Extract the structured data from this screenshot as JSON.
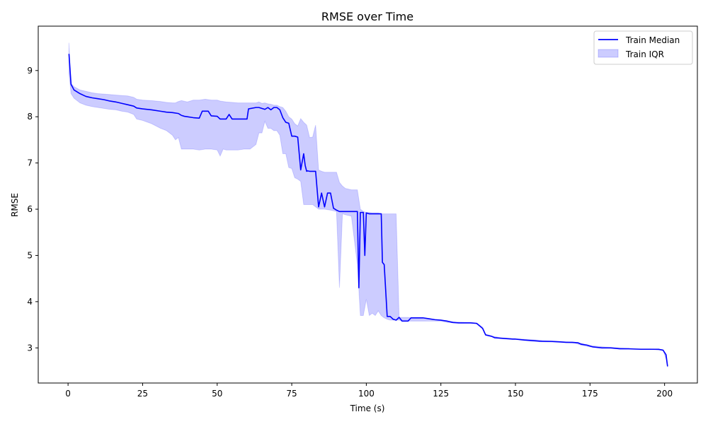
{
  "chart_data": {
    "type": "line",
    "title": "RMSE over Time",
    "xlabel": "Time (s)",
    "ylabel": "RMSE",
    "xlim": [
      -10,
      211
    ],
    "ylim": [
      2.24,
      9.96
    ],
    "xticks": [
      0,
      25,
      50,
      75,
      100,
      125,
      150,
      175,
      200
    ],
    "yticks": [
      3,
      4,
      5,
      6,
      7,
      8,
      9
    ],
    "grid": false,
    "legend_position": "top-right",
    "colors": {
      "median": "#0000ff",
      "iqr_fill": "#0000ff"
    },
    "series": [
      {
        "name": "Train Median",
        "kind": "line",
        "x": [
          0.3,
          1,
          2,
          4,
          6,
          8,
          10,
          12,
          14,
          16,
          18,
          20,
          22,
          23,
          25,
          28,
          31,
          33,
          35,
          37,
          38,
          39,
          40,
          42,
          44,
          45,
          47,
          48,
          50,
          51,
          53,
          54,
          55,
          56,
          58,
          60,
          60.5,
          63,
          64,
          66,
          67,
          68,
          69,
          70,
          71,
          72,
          73,
          74,
          75,
          76,
          77,
          78,
          79,
          79.5,
          80,
          80.3,
          81,
          83,
          84,
          85,
          86,
          87,
          88,
          89,
          90,
          91,
          93,
          95,
          97,
          97.5,
          98,
          99,
          99.5,
          100,
          101,
          103,
          105,
          105.4,
          106,
          107,
          108,
          109,
          110,
          111,
          112,
          114,
          115,
          117,
          119,
          121,
          123,
          125,
          127,
          129,
          131,
          133,
          135,
          137,
          139,
          140,
          142,
          143,
          145,
          147,
          149,
          150,
          153,
          155,
          157,
          159,
          162,
          165,
          167,
          169,
          171,
          172,
          174,
          176,
          179,
          182,
          185,
          188,
          192,
          195,
          198,
          199.5,
          200.5,
          201
        ],
        "y": [
          9.36,
          8.7,
          8.58,
          8.5,
          8.44,
          8.41,
          8.39,
          8.37,
          8.34,
          8.32,
          8.29,
          8.26,
          8.23,
          8.19,
          8.17,
          8.15,
          8.12,
          8.1,
          8.09,
          8.07,
          8.03,
          8.01,
          8.0,
          7.98,
          7.97,
          8.12,
          8.12,
          8.02,
          8.01,
          7.95,
          7.95,
          8.05,
          7.95,
          7.95,
          7.95,
          7.95,
          8.17,
          8.2,
          8.2,
          8.16,
          8.2,
          8.15,
          8.2,
          8.2,
          8.15,
          7.98,
          7.88,
          7.86,
          7.58,
          7.58,
          7.56,
          6.85,
          7.2,
          6.95,
          6.82,
          6.83,
          6.82,
          6.82,
          6.05,
          6.35,
          6.05,
          6.35,
          6.35,
          6.02,
          5.98,
          5.95,
          5.95,
          5.95,
          5.95,
          4.3,
          5.93,
          5.93,
          5.0,
          5.92,
          5.9,
          5.9,
          5.9,
          4.85,
          4.8,
          3.68,
          3.68,
          3.62,
          3.6,
          3.66,
          3.58,
          3.58,
          3.65,
          3.65,
          3.65,
          3.63,
          3.61,
          3.6,
          3.58,
          3.55,
          3.54,
          3.54,
          3.54,
          3.53,
          3.42,
          3.28,
          3.25,
          3.22,
          3.21,
          3.2,
          3.19,
          3.19,
          3.17,
          3.16,
          3.15,
          3.14,
          3.14,
          3.13,
          3.12,
          3.12,
          3.11,
          3.08,
          3.06,
          3.02,
          3.0,
          3.0,
          2.98,
          2.98,
          2.97,
          2.97,
          2.97,
          2.95,
          2.85,
          2.6
        ]
      },
      {
        "name": "Train IQR",
        "kind": "band",
        "x": [
          0.3,
          1,
          2,
          4,
          6,
          8,
          10,
          12,
          14,
          16,
          18,
          20,
          22,
          23,
          25,
          28,
          31,
          33,
          35,
          36,
          37,
          38,
          40,
          42,
          44,
          46,
          48,
          50,
          51,
          52,
          53,
          55,
          57,
          59,
          61,
          63,
          64,
          65,
          66,
          67,
          68,
          69,
          70,
          71,
          72,
          73,
          74,
          75,
          76,
          77,
          78,
          79,
          80,
          81,
          82,
          83,
          84,
          85,
          86,
          88,
          90,
          91,
          92,
          93,
          95,
          97,
          98,
          99,
          100,
          101,
          102,
          103,
          104,
          105,
          106,
          107,
          108,
          109,
          110,
          111,
          112,
          114,
          116,
          118,
          120,
          122,
          125,
          127,
          130,
          135,
          137,
          139,
          140,
          142,
          145,
          150,
          155,
          160,
          165,
          170,
          172,
          175,
          180,
          185,
          190,
          195,
          198,
          199.5,
          200.5,
          201
        ],
        "y_low": [
          8.95,
          8.5,
          8.4,
          8.3,
          8.25,
          8.22,
          8.2,
          8.18,
          8.16,
          8.15,
          8.12,
          8.1,
          8.05,
          7.95,
          7.92,
          7.85,
          7.75,
          7.7,
          7.6,
          7.5,
          7.55,
          7.3,
          7.3,
          7.3,
          7.28,
          7.3,
          7.3,
          7.28,
          7.15,
          7.3,
          7.28,
          7.28,
          7.28,
          7.3,
          7.3,
          7.4,
          7.65,
          7.65,
          7.9,
          7.75,
          7.75,
          7.7,
          7.7,
          7.6,
          7.2,
          7.2,
          6.9,
          6.88,
          6.68,
          6.65,
          6.6,
          6.1,
          6.1,
          6.1,
          6.1,
          6.05,
          6.0,
          6.0,
          6.0,
          5.98,
          5.95,
          4.3,
          5.9,
          5.88,
          5.85,
          4.8,
          3.7,
          3.7,
          4.05,
          3.7,
          3.75,
          3.7,
          3.8,
          3.7,
          3.65,
          3.62,
          3.6,
          3.6,
          3.6,
          3.6,
          3.58,
          3.58,
          3.58,
          3.58,
          3.58,
          3.58,
          3.58,
          3.55,
          3.54,
          3.54,
          3.52,
          3.42,
          3.28,
          3.25,
          3.2,
          3.18,
          3.15,
          3.13,
          3.12,
          3.1,
          3.06,
          3.02,
          3.0,
          2.98,
          2.97,
          2.97,
          2.95,
          2.95,
          2.75,
          2.58
        ],
        "y_high": [
          9.6,
          8.72,
          8.65,
          8.58,
          8.55,
          8.52,
          8.5,
          8.49,
          8.48,
          8.47,
          8.46,
          8.45,
          8.42,
          8.38,
          8.36,
          8.35,
          8.33,
          8.31,
          8.3,
          8.3,
          8.33,
          8.35,
          8.32,
          8.36,
          8.36,
          8.38,
          8.36,
          8.36,
          8.34,
          8.33,
          8.32,
          8.31,
          8.3,
          8.3,
          8.3,
          8.3,
          8.32,
          8.29,
          8.3,
          8.28,
          8.27,
          8.25,
          8.25,
          8.22,
          8.2,
          8.12,
          8.0,
          7.95,
          7.85,
          7.8,
          7.96,
          7.88,
          7.82,
          7.55,
          7.56,
          7.82,
          6.85,
          6.82,
          6.8,
          6.8,
          6.8,
          6.58,
          6.5,
          6.45,
          6.42,
          6.42,
          6.0,
          5.95,
          5.93,
          5.93,
          5.92,
          5.92,
          5.92,
          5.9,
          5.9,
          5.9,
          5.9,
          5.9,
          5.9,
          3.66,
          3.66,
          3.66,
          3.65,
          3.65,
          3.64,
          3.62,
          3.6,
          3.58,
          3.56,
          3.55,
          3.54,
          3.45,
          3.3,
          3.26,
          3.22,
          3.2,
          3.18,
          3.16,
          3.14,
          3.12,
          3.1,
          3.05,
          3.02,
          3.0,
          2.98,
          2.98,
          2.97,
          2.96,
          2.8,
          2.62
        ]
      }
    ]
  }
}
